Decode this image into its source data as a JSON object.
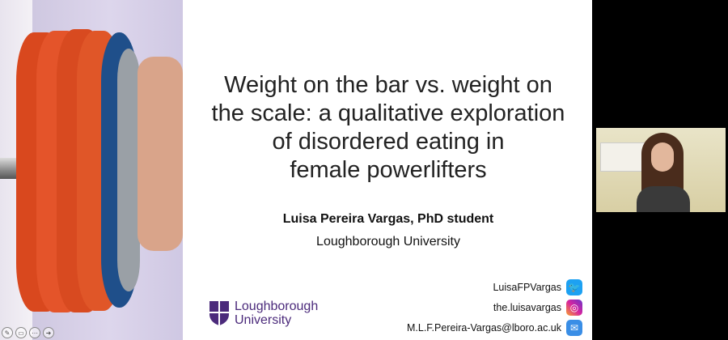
{
  "slide": {
    "title": "Weight on the bar vs. weight on the scale: a qualitative exploration of disordered eating in female powerlifters",
    "title_lines": [
      "Weight on the bar vs. weight on",
      "the scale: a qualitative exploration",
      "of disordered eating in",
      "female powerlifters"
    ],
    "author": "Luisa Pereira Vargas, PhD student",
    "university": "Loughborough University",
    "logo": {
      "line1": "Loughborough",
      "line2": "University",
      "color": "#4b2a7b"
    },
    "contacts": [
      {
        "text": "LuisaFPVargas",
        "icon": "twitter-icon",
        "color": "#1da1f2"
      },
      {
        "text": "the.luisavargas",
        "icon": "instagram-icon",
        "color": "#d6249f"
      },
      {
        "text": "M.L.F.Pereira-Vargas@lboro.ac.uk",
        "icon": "mail-icon",
        "color": "#3a8ee6"
      }
    ]
  },
  "controls": [
    {
      "icon": "pen-icon"
    },
    {
      "icon": "slides-icon"
    },
    {
      "icon": "more-icon"
    },
    {
      "icon": "next-arrow-icon"
    }
  ],
  "webcam": {
    "label": "participant-video"
  }
}
